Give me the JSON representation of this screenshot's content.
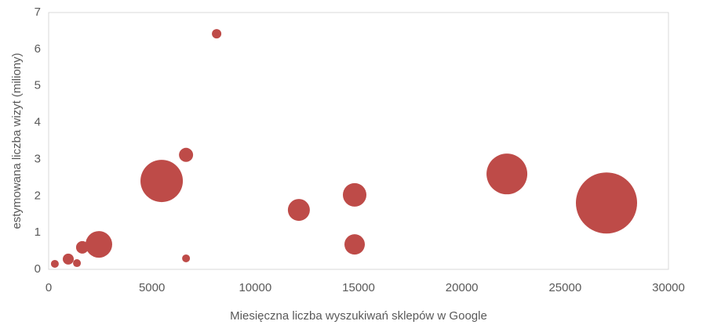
{
  "chart_data": {
    "type": "bubble",
    "x_label": "Miesięczna liczba wyszukiwań sklepów w Google",
    "y_label": "estymowana liczba wizyt (miliony)",
    "x": [
      300,
      950,
      1370,
      1630,
      2430,
      5470,
      6650,
      6650,
      8130,
      12110,
      14810,
      14810,
      22180,
      27000
    ],
    "values": [
      0.15,
      0.28,
      0.17,
      0.6,
      0.68,
      2.41,
      3.12,
      0.3,
      6.42,
      1.62,
      2.03,
      0.68,
      2.6,
      1.81
    ],
    "sizes": [
      25,
      49,
      25,
      64,
      289,
      729,
      81,
      25,
      36,
      196,
      225,
      169,
      676,
      1521
    ],
    "color": "#be4b48",
    "xlim": [
      0,
      30000
    ],
    "ylim": [
      0,
      7
    ],
    "xticks": [
      0,
      5000,
      10000,
      15000,
      20000,
      25000,
      30000
    ],
    "yticks": [
      0,
      1,
      2,
      3,
      4,
      5,
      6,
      7
    ]
  }
}
